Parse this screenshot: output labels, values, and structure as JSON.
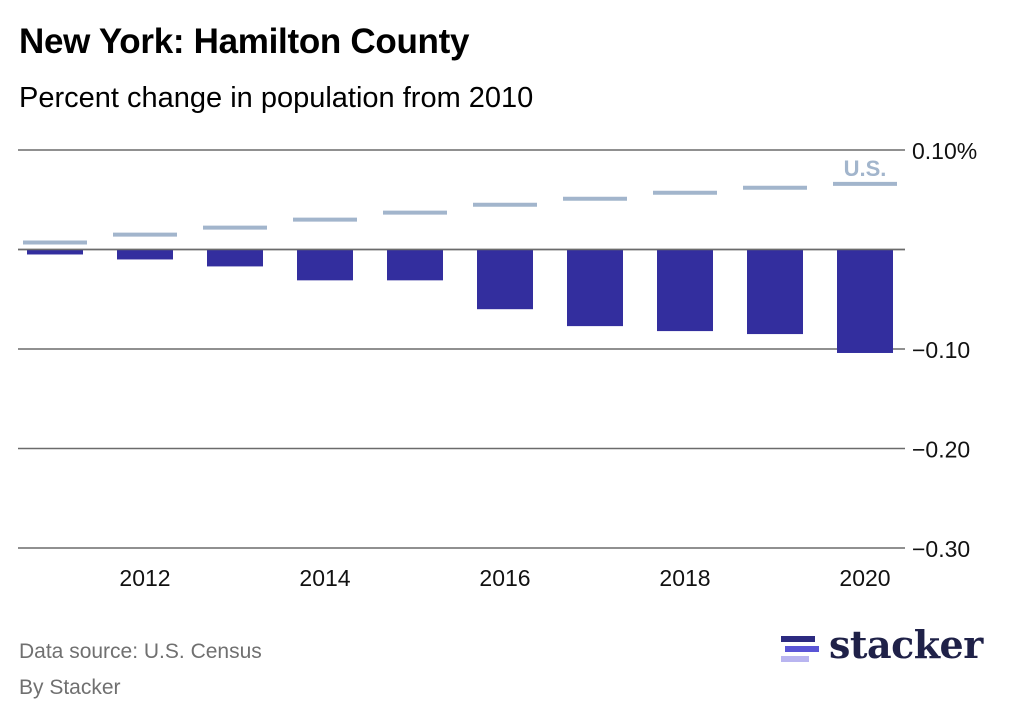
{
  "header": {
    "title": "New York: Hamilton County",
    "subtitle": "Percent change in population from 2010"
  },
  "footer": {
    "source": "Data source: U.S. Census",
    "byline": "By Stacker",
    "logo_text": "stacker"
  },
  "colors": {
    "county_bar": "#332e9e",
    "us_line": "#a2b5cc",
    "gridline": "#6b6b6b",
    "logo_bar_top": "#2c2a80",
    "logo_bar_mid": "#5a55d6",
    "logo_bar_bottom": "#b9b5f0"
  },
  "chart_data": {
    "type": "bar",
    "title": "New York: Hamilton County",
    "subtitle": "Percent change in population from 2010",
    "xlabel": "",
    "ylabel": "",
    "x": [
      2011,
      2012,
      2013,
      2014,
      2015,
      2016,
      2017,
      2018,
      2019,
      2020
    ],
    "x_tick_labels": [
      "2012",
      "2014",
      "2016",
      "2018",
      "2020"
    ],
    "y_ticks": [
      0.1,
      0,
      -0.1,
      -0.2,
      -0.3
    ],
    "y_tick_labels": [
      "0.10%",
      "",
      "−0.10",
      "−0.20",
      "−0.30"
    ],
    "ylim": [
      -0.3,
      0.1
    ],
    "grid": true,
    "y_axis_position": "right",
    "series": [
      {
        "name": "Hamilton County",
        "type": "bar",
        "values": [
          -0.005,
          -0.01,
          -0.017,
          -0.031,
          -0.031,
          -0.06,
          -0.077,
          -0.082,
          -0.085,
          -0.104
        ]
      },
      {
        "name": "U.S.",
        "type": "marker-line",
        "label": "U.S.",
        "values": [
          0.007,
          0.015,
          0.022,
          0.03,
          0.037,
          0.045,
          0.051,
          0.057,
          0.062,
          0.066
        ]
      }
    ]
  }
}
